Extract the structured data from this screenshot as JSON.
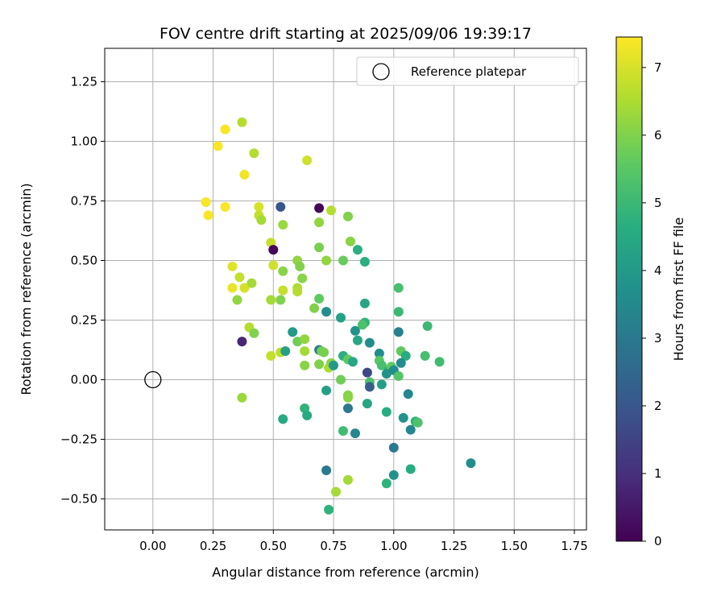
{
  "chart_data": {
    "type": "scatter",
    "title": "FOV centre drift starting at 2025/09/06 19:39:17",
    "xlabel": "Angular distance from reference (arcmin)",
    "ylabel": "Rotation from reference (arcmin)",
    "xlim": [
      -0.2,
      1.8
    ],
    "ylim": [
      -0.63,
      1.39
    ],
    "grid": true,
    "xticks": [
      0.0,
      0.25,
      0.5,
      0.75,
      1.0,
      1.25,
      1.5,
      1.75
    ],
    "yticks": [
      -0.5,
      -0.25,
      0.0,
      0.25,
      0.5,
      0.75,
      1.0,
      1.25
    ],
    "xtick_labels": [
      "0.00",
      "0.25",
      "0.50",
      "0.75",
      "1.00",
      "1.25",
      "1.50",
      "1.75"
    ],
    "ytick_labels": [
      "−0.50",
      "−0.25",
      "0.00",
      "0.25",
      "0.50",
      "0.75",
      "1.00",
      "1.25"
    ],
    "legend": {
      "position": "top-right",
      "label": "Reference platepar"
    },
    "reference_point": {
      "x": 0.0,
      "y": 0.0
    },
    "colorbar": {
      "label": "Hours from first FF file",
      "range": [
        0,
        7.45
      ],
      "ticks": [
        0,
        1,
        2,
        3,
        4,
        5,
        6,
        7
      ],
      "colormap": "viridis"
    },
    "points": [
      {
        "x": 0.3,
        "y": 1.05,
        "h": 7.4
      },
      {
        "x": 0.27,
        "y": 0.98,
        "h": 7.4
      },
      {
        "x": 0.37,
        "y": 1.08,
        "h": 6.6
      },
      {
        "x": 0.42,
        "y": 0.95,
        "h": 6.6
      },
      {
        "x": 0.64,
        "y": 0.92,
        "h": 6.9
      },
      {
        "x": 0.38,
        "y": 0.86,
        "h": 7.3
      },
      {
        "x": 0.22,
        "y": 0.745,
        "h": 7.4
      },
      {
        "x": 0.23,
        "y": 0.69,
        "h": 7.4
      },
      {
        "x": 0.3,
        "y": 0.725,
        "h": 7.4
      },
      {
        "x": 0.44,
        "y": 0.725,
        "h": 7.0
      },
      {
        "x": 0.44,
        "y": 0.69,
        "h": 6.8
      },
      {
        "x": 0.45,
        "y": 0.67,
        "h": 6.4
      },
      {
        "x": 0.53,
        "y": 0.725,
        "h": 2.0
      },
      {
        "x": 0.69,
        "y": 0.72,
        "h": 0.1
      },
      {
        "x": 0.74,
        "y": 0.71,
        "h": 6.6
      },
      {
        "x": 0.69,
        "y": 0.66,
        "h": 6.2
      },
      {
        "x": 0.81,
        "y": 0.685,
        "h": 6.0
      },
      {
        "x": 0.54,
        "y": 0.65,
        "h": 6.3
      },
      {
        "x": 0.49,
        "y": 0.575,
        "h": 6.8
      },
      {
        "x": 0.5,
        "y": 0.545,
        "h": 0.1
      },
      {
        "x": 0.69,
        "y": 0.555,
        "h": 5.9
      },
      {
        "x": 0.82,
        "y": 0.58,
        "h": 6.1
      },
      {
        "x": 0.85,
        "y": 0.545,
        "h": 4.7
      },
      {
        "x": 0.6,
        "y": 0.5,
        "h": 6.2
      },
      {
        "x": 0.72,
        "y": 0.5,
        "h": 6.2
      },
      {
        "x": 0.79,
        "y": 0.5,
        "h": 5.7
      },
      {
        "x": 0.88,
        "y": 0.495,
        "h": 4.7
      },
      {
        "x": 0.33,
        "y": 0.475,
        "h": 7.1
      },
      {
        "x": 0.5,
        "y": 0.48,
        "h": 6.9
      },
      {
        "x": 0.61,
        "y": 0.475,
        "h": 6.0
      },
      {
        "x": 0.54,
        "y": 0.455,
        "h": 6.1
      },
      {
        "x": 0.36,
        "y": 0.43,
        "h": 6.8
      },
      {
        "x": 0.62,
        "y": 0.425,
        "h": 6.1
      },
      {
        "x": 0.33,
        "y": 0.385,
        "h": 7.2
      },
      {
        "x": 0.38,
        "y": 0.385,
        "h": 7.0
      },
      {
        "x": 0.41,
        "y": 0.405,
        "h": 6.4
      },
      {
        "x": 0.54,
        "y": 0.375,
        "h": 6.8
      },
      {
        "x": 0.6,
        "y": 0.385,
        "h": 6.5
      },
      {
        "x": 0.6,
        "y": 0.37,
        "h": 6.6
      },
      {
        "x": 1.02,
        "y": 0.385,
        "h": 5.2
      },
      {
        "x": 0.35,
        "y": 0.335,
        "h": 6.2
      },
      {
        "x": 0.49,
        "y": 0.335,
        "h": 6.4
      },
      {
        "x": 0.53,
        "y": 0.335,
        "h": 6.0
      },
      {
        "x": 0.69,
        "y": 0.34,
        "h": 5.6
      },
      {
        "x": 0.67,
        "y": 0.3,
        "h": 6.0
      },
      {
        "x": 0.88,
        "y": 0.32,
        "h": 4.4
      },
      {
        "x": 0.72,
        "y": 0.285,
        "h": 3.6
      },
      {
        "x": 1.02,
        "y": 0.285,
        "h": 5.0
      },
      {
        "x": 0.78,
        "y": 0.26,
        "h": 4.2
      },
      {
        "x": 0.88,
        "y": 0.24,
        "h": 4.8
      },
      {
        "x": 0.87,
        "y": 0.23,
        "h": 5.3
      },
      {
        "x": 0.4,
        "y": 0.22,
        "h": 6.6
      },
      {
        "x": 0.42,
        "y": 0.195,
        "h": 6.0
      },
      {
        "x": 0.58,
        "y": 0.2,
        "h": 4.0
      },
      {
        "x": 0.84,
        "y": 0.205,
        "h": 3.8
      },
      {
        "x": 1.02,
        "y": 0.2,
        "h": 3.2
      },
      {
        "x": 1.14,
        "y": 0.225,
        "h": 5.0
      },
      {
        "x": 0.37,
        "y": 0.16,
        "h": 0.8
      },
      {
        "x": 0.6,
        "y": 0.16,
        "h": 5.8
      },
      {
        "x": 0.85,
        "y": 0.165,
        "h": 4.4
      },
      {
        "x": 0.9,
        "y": 0.155,
        "h": 3.6
      },
      {
        "x": 0.49,
        "y": 0.1,
        "h": 6.8
      },
      {
        "x": 0.53,
        "y": 0.115,
        "h": 6.7
      },
      {
        "x": 0.55,
        "y": 0.12,
        "h": 4.2
      },
      {
        "x": 0.63,
        "y": 0.12,
        "h": 6.4
      },
      {
        "x": 0.63,
        "y": 0.17,
        "h": 6.2
      },
      {
        "x": 0.69,
        "y": 0.125,
        "h": 3.0
      },
      {
        "x": 0.7,
        "y": 0.12,
        "h": 5.8
      },
      {
        "x": 0.71,
        "y": 0.115,
        "h": 5.9
      },
      {
        "x": 0.94,
        "y": 0.11,
        "h": 3.6
      },
      {
        "x": 1.03,
        "y": 0.12,
        "h": 5.6
      },
      {
        "x": 1.05,
        "y": 0.1,
        "h": 4.6
      },
      {
        "x": 1.13,
        "y": 0.1,
        "h": 5.2
      },
      {
        "x": 0.79,
        "y": 0.1,
        "h": 4.7
      },
      {
        "x": 0.81,
        "y": 0.085,
        "h": 5.6
      },
      {
        "x": 0.83,
        "y": 0.075,
        "h": 4.4
      },
      {
        "x": 0.94,
        "y": 0.08,
        "h": 5.5
      },
      {
        "x": 1.19,
        "y": 0.075,
        "h": 5.1
      },
      {
        "x": 0.63,
        "y": 0.06,
        "h": 6.1
      },
      {
        "x": 0.69,
        "y": 0.065,
        "h": 6.0
      },
      {
        "x": 0.73,
        "y": 0.05,
        "h": 6.5
      },
      {
        "x": 0.74,
        "y": 0.07,
        "h": 6.1
      },
      {
        "x": 0.75,
        "y": 0.06,
        "h": 4.0
      },
      {
        "x": 0.95,
        "y": 0.06,
        "h": 5.2
      },
      {
        "x": 0.98,
        "y": 0.04,
        "h": 4.8
      },
      {
        "x": 0.99,
        "y": 0.055,
        "h": 5.6
      },
      {
        "x": 1.03,
        "y": 0.07,
        "h": 3.6
      },
      {
        "x": 0.89,
        "y": 0.03,
        "h": 1.6
      },
      {
        "x": 0.97,
        "y": 0.025,
        "h": 3.8
      },
      {
        "x": 1.0,
        "y": 0.04,
        "h": 3.6
      },
      {
        "x": 1.02,
        "y": 0.015,
        "h": 5.4
      },
      {
        "x": 0.78,
        "y": 0.0,
        "h": 5.8
      },
      {
        "x": 0.9,
        "y": -0.01,
        "h": 5.3
      },
      {
        "x": 0.9,
        "y": -0.03,
        "h": 2.2
      },
      {
        "x": 0.95,
        "y": -0.02,
        "h": 4.2
      },
      {
        "x": 0.37,
        "y": -0.075,
        "h": 6.3
      },
      {
        "x": 0.72,
        "y": -0.045,
        "h": 4.2
      },
      {
        "x": 0.81,
        "y": -0.065,
        "h": 6.0
      },
      {
        "x": 0.81,
        "y": -0.075,
        "h": 6.1
      },
      {
        "x": 1.06,
        "y": -0.06,
        "h": 3.4
      },
      {
        "x": 0.89,
        "y": -0.1,
        "h": 4.4
      },
      {
        "x": 0.81,
        "y": -0.12,
        "h": 3.0
      },
      {
        "x": 0.63,
        "y": -0.12,
        "h": 4.8
      },
      {
        "x": 0.64,
        "y": -0.15,
        "h": 4.5
      },
      {
        "x": 0.54,
        "y": -0.165,
        "h": 4.5
      },
      {
        "x": 0.97,
        "y": -0.135,
        "h": 4.6
      },
      {
        "x": 1.04,
        "y": -0.16,
        "h": 3.8
      },
      {
        "x": 1.09,
        "y": -0.175,
        "h": 4.8
      },
      {
        "x": 1.1,
        "y": -0.18,
        "h": 5.3
      },
      {
        "x": 1.07,
        "y": -0.21,
        "h": 3.4
      },
      {
        "x": 0.79,
        "y": -0.215,
        "h": 5.1
      },
      {
        "x": 0.84,
        "y": -0.225,
        "h": 3.4
      },
      {
        "x": 1.0,
        "y": -0.285,
        "h": 3.0
      },
      {
        "x": 1.32,
        "y": -0.35,
        "h": 3.6
      },
      {
        "x": 0.72,
        "y": -0.38,
        "h": 3.0
      },
      {
        "x": 1.07,
        "y": -0.375,
        "h": 4.6
      },
      {
        "x": 1.0,
        "y": -0.4,
        "h": 3.8
      },
      {
        "x": 0.81,
        "y": -0.42,
        "h": 6.4
      },
      {
        "x": 0.97,
        "y": -0.435,
        "h": 4.8
      },
      {
        "x": 0.76,
        "y": -0.47,
        "h": 6.4
      },
      {
        "x": 0.73,
        "y": -0.545,
        "h": 4.8
      }
    ]
  }
}
